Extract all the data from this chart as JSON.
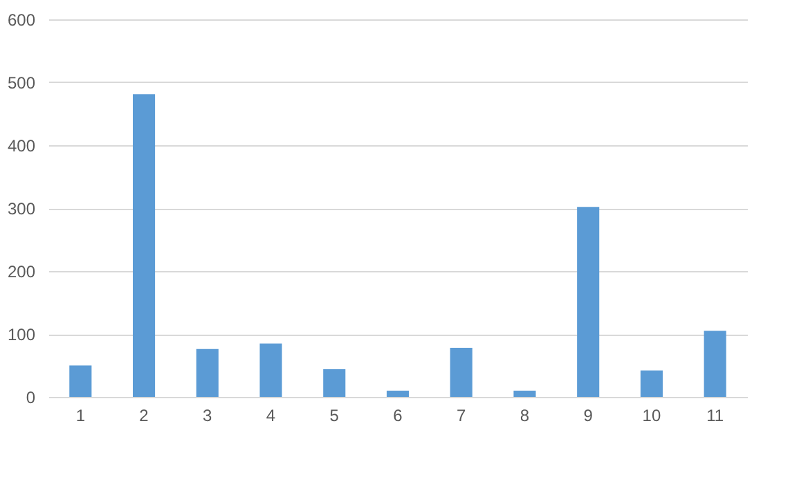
{
  "chart_data": {
    "type": "bar",
    "categories": [
      "1",
      "2",
      "3",
      "4",
      "5",
      "6",
      "7",
      "8",
      "9",
      "10",
      "11"
    ],
    "values": [
      50,
      481,
      76,
      85,
      44,
      10,
      78,
      10,
      302,
      42,
      105
    ],
    "color": "#5b9bd5",
    "ylim": [
      0,
      600
    ],
    "yticks": [
      0,
      100,
      200,
      300,
      400,
      500,
      600
    ],
    "grid": "y"
  }
}
